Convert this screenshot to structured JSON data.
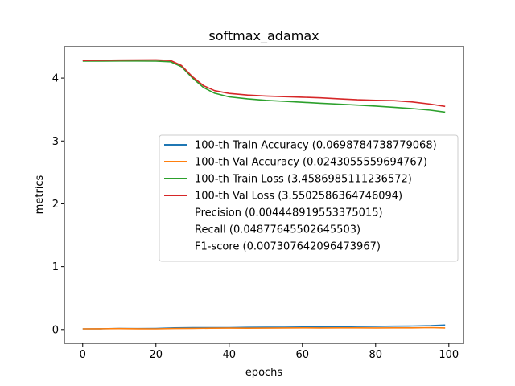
{
  "chart_data": {
    "type": "line",
    "title": "softmax_adamax",
    "xlabel": "epochs",
    "ylabel": "metrics",
    "xlim": [
      -5,
      104
    ],
    "ylim": [
      -0.22,
      4.5
    ],
    "xticks": [
      0,
      20,
      40,
      60,
      80,
      100
    ],
    "yticks": [
      0,
      1,
      2,
      3,
      4
    ],
    "grid": false,
    "legend_position": "center-right",
    "series": [
      {
        "name": "100-th Train Accuracy (0.0698784738779068)",
        "color": "#1f77b4",
        "x": [
          0,
          5,
          10,
          15,
          20,
          25,
          30,
          35,
          40,
          45,
          50,
          55,
          60,
          65,
          70,
          75,
          80,
          85,
          90,
          95,
          99
        ],
        "y": [
          0.01,
          0.012,
          0.015,
          0.014,
          0.017,
          0.025,
          0.028,
          0.03,
          0.03,
          0.033,
          0.035,
          0.036,
          0.038,
          0.04,
          0.043,
          0.047,
          0.05,
          0.052,
          0.055,
          0.06,
          0.07
        ]
      },
      {
        "name": "100-th Val Accuracy (0.0243055559694767)",
        "color": "#ff7f0e",
        "x": [
          0,
          5,
          10,
          15,
          20,
          25,
          30,
          35,
          40,
          45,
          50,
          55,
          60,
          65,
          70,
          75,
          80,
          85,
          90,
          95,
          99
        ],
        "y": [
          0.01,
          0.012,
          0.014,
          0.012,
          0.01,
          0.015,
          0.018,
          0.02,
          0.022,
          0.02,
          0.022,
          0.024,
          0.025,
          0.024,
          0.026,
          0.025,
          0.024,
          0.026,
          0.025,
          0.03,
          0.024
        ]
      },
      {
        "name": "100-th Train Loss (3.4586985111236572)",
        "color": "#2ca02c",
        "x": [
          0,
          5,
          10,
          15,
          20,
          24,
          27,
          30,
          33,
          36,
          40,
          45,
          50,
          55,
          60,
          65,
          70,
          75,
          80,
          85,
          90,
          95,
          99
        ],
        "y": [
          4.27,
          4.27,
          4.272,
          4.272,
          4.27,
          4.26,
          4.18,
          4.0,
          3.85,
          3.76,
          3.7,
          3.67,
          3.645,
          3.63,
          3.615,
          3.6,
          3.585,
          3.57,
          3.555,
          3.535,
          3.515,
          3.49,
          3.459
        ]
      },
      {
        "name": "100-th Val Loss (3.5502586364746094)",
        "color": "#d62728",
        "x": [
          0,
          5,
          10,
          15,
          20,
          24,
          27,
          30,
          33,
          36,
          40,
          45,
          50,
          55,
          60,
          65,
          70,
          75,
          80,
          85,
          90,
          95,
          99
        ],
        "y": [
          4.28,
          4.283,
          4.286,
          4.289,
          4.29,
          4.28,
          4.2,
          4.02,
          3.88,
          3.8,
          3.755,
          3.73,
          3.715,
          3.705,
          3.695,
          3.685,
          3.67,
          3.655,
          3.645,
          3.64,
          3.62,
          3.585,
          3.55
        ]
      }
    ],
    "legend_extra": [
      "Precision (0.004448919553375015)",
      "Recall (0.04877645502645503)",
      "F1-score (0.007307642096473967)"
    ]
  }
}
